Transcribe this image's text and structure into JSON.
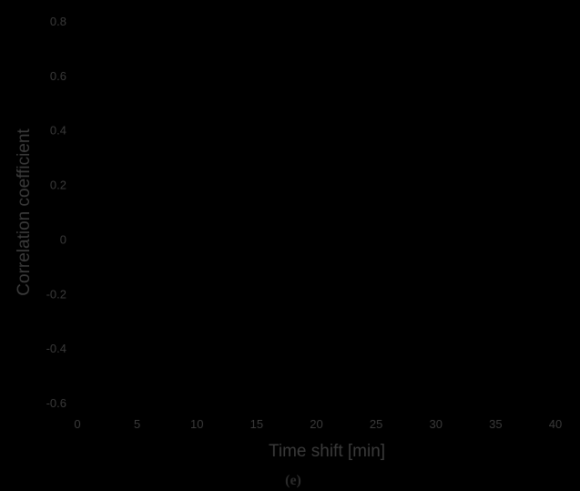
{
  "chart_data": {
    "type": "line",
    "title": "",
    "xlabel": "Time shift [min]",
    "ylabel": "Correlation coefficient",
    "xlim": [
      0,
      40
    ],
    "ylim": [
      -0.6,
      0.8
    ],
    "x_ticks": [
      0,
      5,
      10,
      15,
      20,
      25,
      30,
      35,
      40
    ],
    "y_ticks": [
      0.8,
      0.6,
      0.4,
      0.2,
      0,
      -0.2,
      -0.4,
      -0.6
    ],
    "grid": false,
    "series": [],
    "panel_label": "(e)"
  },
  "colors": {
    "background": "#000000",
    "text": "#3a3a3a",
    "panel_label": "#2a2a2a"
  }
}
